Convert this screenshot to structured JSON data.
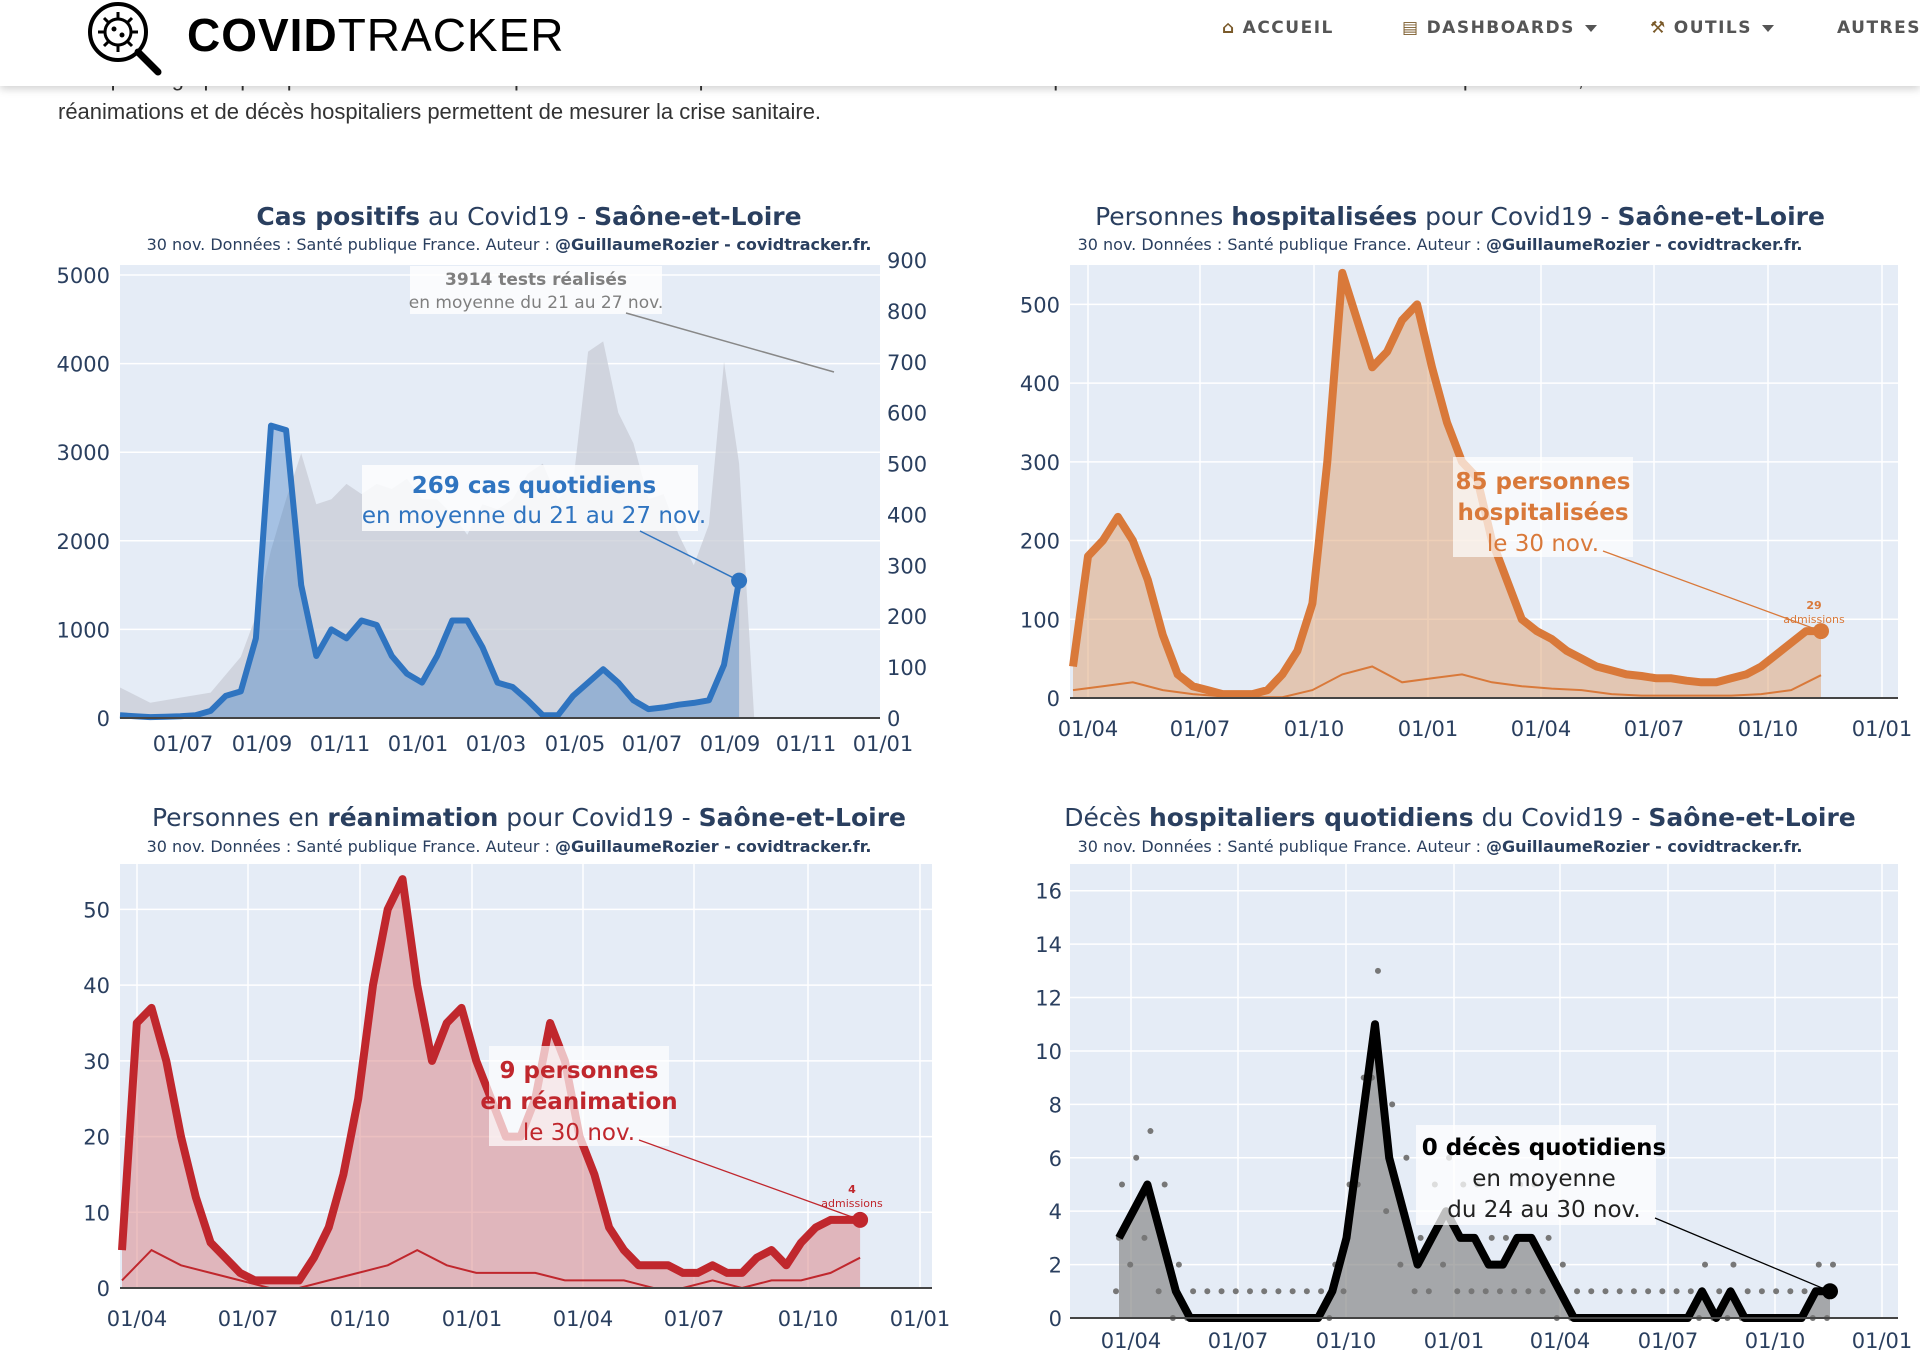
{
  "nav": {
    "brand_bold": "COVID",
    "brand_light": "TRACKER",
    "items": [
      {
        "label": "ACCUEIL",
        "icon": "house-icon",
        "dropdown": false
      },
      {
        "label": "DASHBOARDS",
        "icon": "chart-icon",
        "dropdown": true
      },
      {
        "label": "OUTILS",
        "icon": "tools-icon",
        "dropdown": true
      },
      {
        "label": "AUTRES",
        "icon": "",
        "dropdown": false
      }
    ]
  },
  "intro": {
    "line1": "Ces quatre graphiques permettent d'évaluer l'épidémie dans le département. Le nombre de cas correspond à l'activité du virus. Le nombre d'hospitalisations, de",
    "line2": "réanimations et de décès hospitaliers permettent de mesurer la crise sanitaire."
  },
  "colors": {
    "cases": "#2f74c0",
    "hosp": "#d9793a",
    "rea": "#c0272d",
    "deaths": "#000000",
    "tests": "#c8ccd6",
    "plot_bg": "#e5ecf6"
  },
  "chart_data": [
    {
      "type": "line",
      "title_parts": [
        {
          "text": "Cas positifs",
          "bold": true
        },
        {
          "text": " au Covid19 - ",
          "bold": false
        },
        {
          "text": "Saône-et-Loire",
          "bold": true
        }
      ],
      "subtitle_prefix": "30 nov. Données : Santé publique France. Auteur : ",
      "subtitle_bold": "@GuillaumeRozier - covidtracker.fr.",
      "x_ticks": [
        "01/07",
        "01/09",
        "01/11",
        "01/01",
        "01/03",
        "01/05",
        "01/07",
        "01/09",
        "01/11",
        "01/01"
      ],
      "y_left_ticks": [
        0,
        1000,
        2000,
        3000,
        4000,
        5000
      ],
      "y_right_ticks": [
        0,
        100,
        200,
        300,
        400,
        500,
        600,
        700,
        800,
        900
      ],
      "ylim_left": [
        0,
        5000
      ],
      "ylim_right": [
        0,
        900
      ],
      "series": [
        {
          "name": "",
          "axis": "left",
          "values_x": [
            0,
            2,
            4,
            6,
            8,
            10,
            12,
            14,
            16,
            18,
            20,
            22,
            24,
            26,
            28,
            30,
            32,
            34,
            36,
            38,
            40,
            42,
            44,
            46,
            48,
            50,
            52,
            54,
            56,
            58,
            60,
            62,
            64,
            66,
            68,
            70,
            72,
            74,
            76,
            78,
            80,
            82,
            84,
            86,
            88,
            90,
            92,
            94,
            96,
            98,
            100
          ],
          "values": [
            30,
            20,
            10,
            15,
            20,
            30,
            80,
            250,
            300,
            900,
            3300,
            3250,
            1500,
            700,
            1000,
            900,
            1100,
            1050,
            700,
            500,
            400,
            700,
            1100,
            1100,
            800,
            400,
            350,
            200,
            30,
            30,
            250,
            400,
            550,
            400,
            200,
            100,
            120,
            150,
            170,
            200,
            600,
            1550,
            1550,
            1550,
            1550,
            1550,
            1550,
            1550,
            1550,
            1550,
            1550
          ]
        },
        {
          "name": "",
          "axis": "right",
          "values_x": [
            0,
            4,
            8,
            12,
            16,
            18,
            20,
            22,
            24,
            26,
            28,
            30,
            32,
            34,
            36,
            38,
            40,
            42,
            44,
            46,
            48,
            50,
            52,
            54,
            56,
            58,
            60,
            62,
            64,
            66,
            68,
            70,
            72,
            74,
            76,
            78,
            80,
            82,
            84
          ],
          "values": [
            60,
            30,
            40,
            50,
            120,
            200,
            330,
            430,
            520,
            420,
            430,
            460,
            440,
            460,
            450,
            470,
            430,
            430,
            400,
            360,
            420,
            410,
            430,
            480,
            500,
            430,
            460,
            720,
            740,
            600,
            540,
            430,
            440,
            360,
            300,
            380,
            700,
            500,
            0
          ]
        }
      ],
      "annotations": [
        {
          "bold": "3914 tests réalisés",
          "text": "en moyenne du 21 au 27 nov."
        },
        {
          "bold": "269 cas quotidiens",
          "text": "en moyenne du 21 au 27 nov."
        }
      ]
    },
    {
      "type": "area",
      "title_parts": [
        {
          "text": "Personnes ",
          "bold": false
        },
        {
          "text": "hospitalisées",
          "bold": true
        },
        {
          "text": " pour Covid19 - ",
          "bold": false
        },
        {
          "text": "Saône-et-Loire",
          "bold": true
        }
      ],
      "subtitle_prefix": "30 nov. Données : Santé publique France. Auteur : ",
      "subtitle_bold": "@GuillaumeRozier - covidtracker.fr.",
      "x_ticks": [
        "01/04",
        "01/07",
        "01/10",
        "01/01",
        "01/04",
        "01/07",
        "01/10",
        "01/01"
      ],
      "y_ticks": [
        0,
        100,
        200,
        300,
        400,
        500
      ],
      "ylim": [
        0,
        550
      ],
      "series": [
        {
          "name": "",
          "x": [
            0,
            1,
            2,
            3,
            4,
            5,
            6,
            7,
            8,
            9,
            10,
            11,
            12,
            13,
            14,
            15,
            16,
            17,
            18,
            19,
            20,
            21,
            22,
            23,
            24,
            25,
            26,
            27,
            28,
            29,
            30,
            31,
            32,
            33,
            34,
            35,
            36,
            37,
            38,
            39,
            40,
            41,
            42,
            43,
            44,
            45,
            46,
            47,
            48,
            49,
            50
          ],
          "values": [
            40,
            180,
            200,
            230,
            200,
            150,
            80,
            30,
            15,
            10,
            5,
            5,
            5,
            10,
            30,
            60,
            120,
            300,
            540,
            480,
            420,
            440,
            480,
            500,
            420,
            350,
            300,
            280,
            200,
            150,
            100,
            85,
            75,
            60,
            50,
            40,
            35,
            30,
            28,
            25,
            25,
            22,
            20,
            20,
            25,
            30,
            40,
            55,
            70,
            85,
            85
          ]
        },
        {
          "name": "",
          "x": [
            0,
            2,
            4,
            6,
            8,
            10,
            12,
            14,
            16,
            18,
            20,
            22,
            24,
            26,
            28,
            30,
            32,
            34,
            36,
            38,
            40,
            42,
            44,
            46,
            48,
            50
          ],
          "values": [
            10,
            15,
            20,
            10,
            5,
            2,
            1,
            1,
            10,
            30,
            40,
            20,
            25,
            30,
            20,
            15,
            12,
            10,
            5,
            3,
            3,
            3,
            3,
            5,
            10,
            29
          ]
        }
      ],
      "annotations": [
        {
          "bold": "85 personnes",
          "bold2": "hospitalisées",
          "text": "le 30 nov."
        },
        {
          "bold": "29",
          "text": "admissions"
        }
      ]
    },
    {
      "type": "area",
      "title_parts": [
        {
          "text": "Personnes en ",
          "bold": false
        },
        {
          "text": "réanimation",
          "bold": true
        },
        {
          "text": " pour Covid19 - ",
          "bold": false
        },
        {
          "text": "Saône-et-Loire",
          "bold": true
        }
      ],
      "subtitle_prefix": "30 nov. Données : Santé publique France. Auteur : ",
      "subtitle_bold": "@GuillaumeRozier - covidtracker.fr.",
      "x_ticks": [
        "01/04",
        "01/07",
        "01/10",
        "01/01",
        "01/04",
        "01/07",
        "01/10",
        "01/01"
      ],
      "y_ticks": [
        0,
        10,
        20,
        30,
        40,
        50
      ],
      "ylim": [
        0,
        56
      ],
      "series": [
        {
          "name": "",
          "x": [
            0,
            1,
            2,
            3,
            4,
            5,
            6,
            7,
            8,
            9,
            10,
            11,
            12,
            13,
            14,
            15,
            16,
            17,
            18,
            19,
            20,
            21,
            22,
            23,
            24,
            25,
            26,
            27,
            28,
            29,
            30,
            31,
            32,
            33,
            34,
            35,
            36,
            37,
            38,
            39,
            40,
            41,
            42,
            43,
            44,
            45,
            46,
            47,
            48,
            49,
            50
          ],
          "values": [
            5,
            35,
            37,
            30,
            20,
            12,
            6,
            4,
            2,
            1,
            1,
            1,
            1,
            4,
            8,
            15,
            25,
            40,
            50,
            54,
            40,
            30,
            35,
            37,
            30,
            25,
            20,
            20,
            25,
            35,
            30,
            20,
            15,
            8,
            5,
            3,
            3,
            3,
            2,
            2,
            3,
            2,
            2,
            4,
            5,
            3,
            6,
            8,
            9,
            9,
            9
          ]
        },
        {
          "name": "",
          "x": [
            0,
            2,
            4,
            6,
            8,
            10,
            12,
            14,
            16,
            18,
            20,
            22,
            24,
            26,
            28,
            30,
            32,
            34,
            36,
            38,
            40,
            42,
            44,
            46,
            48,
            50
          ],
          "values": [
            1,
            5,
            3,
            2,
            1,
            0,
            0,
            1,
            2,
            3,
            5,
            3,
            2,
            2,
            2,
            1,
            1,
            1,
            0,
            0,
            1,
            0,
            1,
            1,
            2,
            4
          ]
        }
      ],
      "annotations": [
        {
          "bold": "9 personnes",
          "bold2": "en réanimation",
          "text": "le 30 nov."
        },
        {
          "bold": "4",
          "text": "admissions"
        }
      ]
    },
    {
      "type": "scatter",
      "title_parts": [
        {
          "text": "Décès ",
          "bold": false
        },
        {
          "text": "hospitaliers quotidiens",
          "bold": true
        },
        {
          "text": " du Covid19 - ",
          "bold": false
        },
        {
          "text": "Saône-et-Loire",
          "bold": true
        }
      ],
      "subtitle_prefix": "30 nov. Données : Santé publique France. Auteur : ",
      "subtitle_bold": "@GuillaumeRozier - covidtracker.fr.",
      "x_ticks": [
        "01/04",
        "01/07",
        "01/10",
        "01/01",
        "01/04",
        "01/07",
        "01/10",
        "01/01"
      ],
      "y_ticks": [
        0,
        2,
        4,
        6,
        8,
        10,
        12,
        14,
        16
      ],
      "ylim": [
        0,
        17
      ],
      "series": [
        {
          "name": "",
          "x": [
            0,
            1,
            2,
            3,
            4,
            5,
            6,
            7,
            8,
            9,
            10,
            11,
            12,
            13,
            14,
            15,
            16,
            17,
            18,
            19,
            20,
            21,
            22,
            23,
            24,
            25,
            26,
            27,
            28,
            29,
            30,
            31,
            32,
            33,
            34,
            35,
            36,
            37,
            38,
            39,
            40,
            41,
            42,
            43,
            44,
            45,
            46,
            47,
            48,
            49,
            50
          ],
          "values": [
            3,
            4,
            5,
            3,
            1,
            0,
            0,
            0,
            0,
            0,
            0,
            0,
            0,
            0,
            0,
            1,
            3,
            7,
            11,
            6,
            4,
            2,
            3,
            4,
            3,
            3,
            2,
            2,
            3,
            3,
            2,
            1,
            0,
            0,
            0,
            0,
            0,
            0,
            0,
            0,
            0,
            1,
            0,
            1,
            0,
            0,
            0,
            0,
            0,
            1,
            1
          ]
        }
      ],
      "annotations": [
        {
          "bold": "0 décès quotidiens",
          "text": "en moyenne",
          "text2": "du 24 au 30 nov."
        }
      ]
    }
  ]
}
